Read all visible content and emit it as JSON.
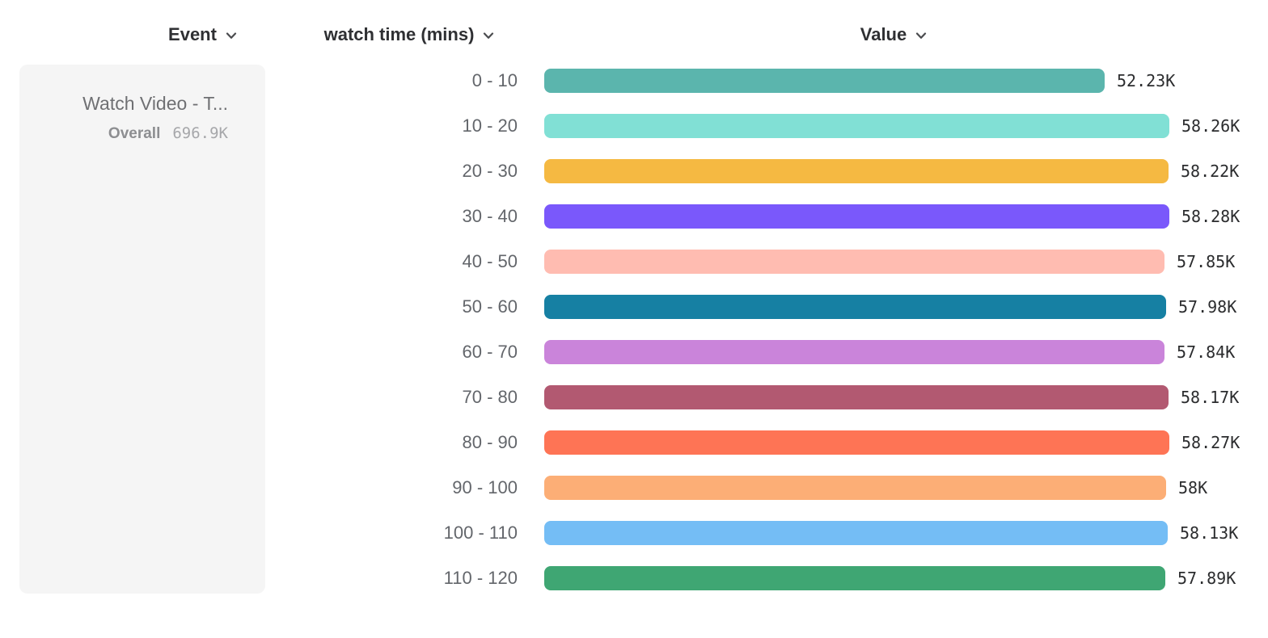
{
  "header": {
    "event_label": "Event",
    "watch_time_label": "watch time (mins)",
    "value_label": "Value"
  },
  "event_card": {
    "name": "Watch Video - T...",
    "overall_label": "Overall",
    "overall_value": "696.9K"
  },
  "icons": {
    "dropdown": "chevron-down-icon"
  },
  "colors": {
    "header_text": "#2f3033",
    "bucket_label_text": "#63666b",
    "value_text": "#2b2c2e",
    "card_background": "#f5f5f5"
  },
  "chart_data": {
    "type": "bar",
    "orientation": "horizontal",
    "title": "",
    "xlabel": "Value",
    "ylabel": "watch time (mins)",
    "grid": false,
    "legend": "none",
    "xlim": [
      0,
      58280
    ],
    "categories": [
      "0 - 10",
      "10 - 20",
      "20 - 30",
      "30 - 40",
      "40 - 50",
      "50 - 60",
      "60 - 70",
      "70 - 80",
      "80 - 90",
      "90 - 100",
      "100 - 110",
      "110 - 120"
    ],
    "values": [
      52230,
      58260,
      58220,
      58280,
      57850,
      57980,
      57840,
      58170,
      58270,
      58000,
      58130,
      57890
    ],
    "value_labels": [
      "52.23K",
      "58.26K",
      "58.22K",
      "58.28K",
      "57.85K",
      "57.98K",
      "57.84K",
      "58.17K",
      "58.27K",
      "58K",
      "58.13K",
      "57.89K"
    ],
    "colors": [
      "#5bb5ad",
      "#81e0d5",
      "#f5b942",
      "#7a58fb",
      "#ffbcb1",
      "#1680a3",
      "#ca84da",
      "#b25971",
      "#fe7455",
      "#fcae76",
      "#74bdf5",
      "#3fa673"
    ]
  }
}
